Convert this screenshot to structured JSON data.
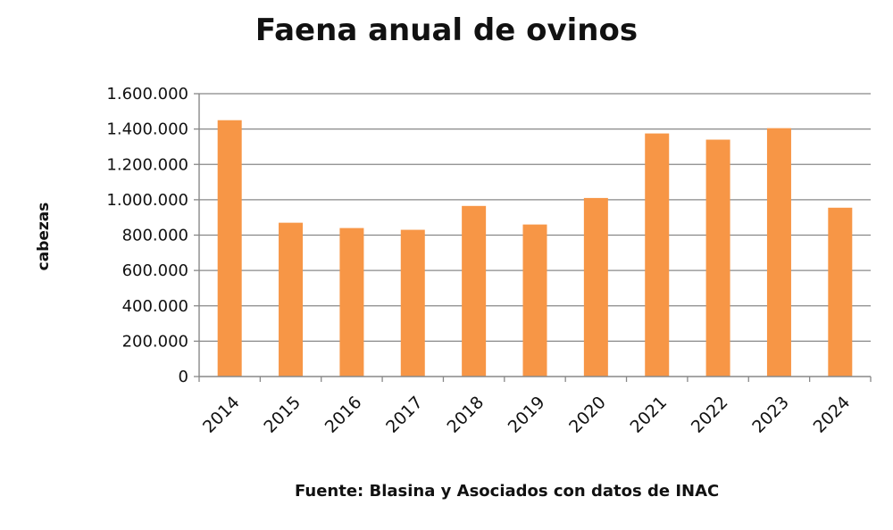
{
  "chart_data": {
    "type": "bar",
    "title": "Faena anual de ovinos",
    "xlabel": "",
    "ylabel": "cabezas",
    "source": "Fuente: Blasina y Asociados  con datos de INAC",
    "categories": [
      "2014",
      "2015",
      "2016",
      "2017",
      "2018",
      "2019",
      "2020",
      "2021",
      "2022",
      "2023",
      "2024"
    ],
    "values": [
      1450000,
      870000,
      840000,
      830000,
      965000,
      860000,
      1010000,
      1375000,
      1340000,
      1405000,
      955000
    ],
    "ylim": [
      0,
      1600000
    ],
    "y_ticks": [
      0,
      200000,
      400000,
      600000,
      800000,
      1000000,
      1200000,
      1400000,
      1600000
    ],
    "y_tick_labels": [
      "0",
      "200.000",
      "400.000",
      "600.000",
      "800.000",
      "1.000.000",
      "1.200.000",
      "1.400.000",
      "1.600.000"
    ],
    "grid": true,
    "legend": "none",
    "colors": {
      "bar": "#F79646",
      "gridline": "#888888",
      "axis": "#888888",
      "text": "#111111"
    }
  }
}
